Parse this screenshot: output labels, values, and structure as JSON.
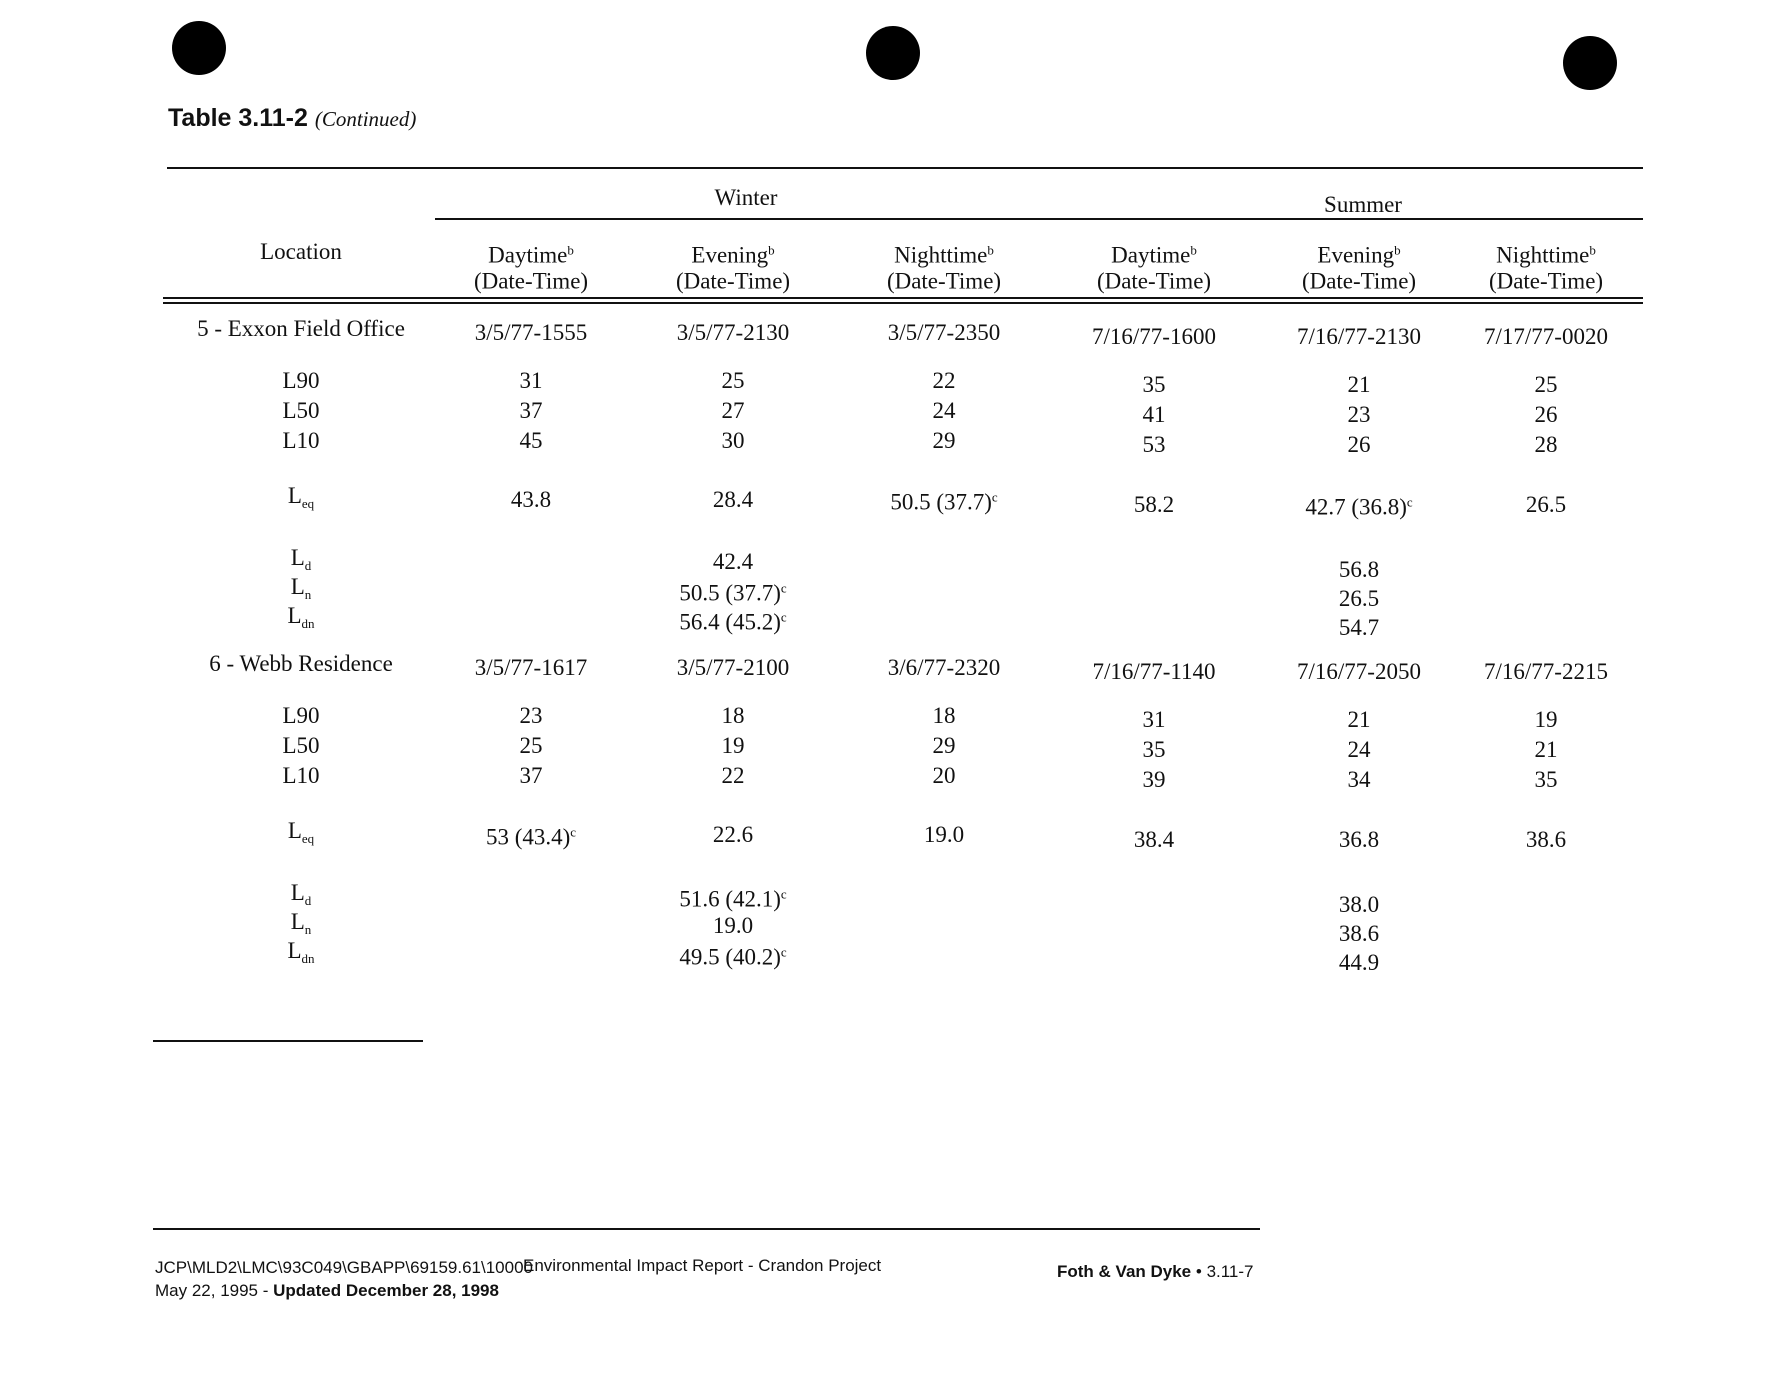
{
  "header": {
    "title": "Table 3.11-2",
    "subtitle": "(Continued)"
  },
  "table": {
    "location_header": "Location",
    "groups": [
      "Winter",
      "Summer"
    ],
    "columns": [
      {
        "name": "Daytime",
        "note": "b",
        "sub": "(Date-Time)"
      },
      {
        "name": "Evening",
        "note": "b",
        "sub": "(Date-Time)"
      },
      {
        "name": "Nighttime",
        "note": "b",
        "sub": "(Date-Time)"
      },
      {
        "name": "Daytime",
        "note": "b",
        "sub": "(Date-Time)"
      },
      {
        "name": "Evening",
        "note": "b",
        "sub": "(Date-Time)"
      },
      {
        "name": "Nighttime",
        "note": "b",
        "sub": "(Date-Time)"
      }
    ],
    "sections": [
      {
        "location": "5 - Exxon Field Office",
        "dates": [
          "3/5/77-1555",
          "3/5/77-2130",
          "3/5/77-2350",
          "7/16/77-1600",
          "7/16/77-2130",
          "7/17/77-0020"
        ],
        "rows": [
          {
            "label": "L90",
            "values": [
              31,
              25,
              22,
              35,
              21,
              25
            ]
          },
          {
            "label": "L50",
            "values": [
              37,
              27,
              24,
              41,
              23,
              26
            ]
          },
          {
            "label": "L10",
            "values": [
              45,
              30,
              29,
              53,
              26,
              28
            ]
          }
        ],
        "leq": {
          "label": {
            "base": "L",
            "sub": "eq"
          },
          "values": [
            43.8,
            28.4,
            {
              "text": "50.5 (37.7)",
              "note": "c"
            },
            58.2,
            {
              "text": "42.7 (36.8)",
              "note": "c"
            },
            26.5
          ]
        },
        "day_night": [
          {
            "label": {
              "base": "L",
              "sub": "d"
            },
            "winter": 42.4,
            "summer": 56.8
          },
          {
            "label": {
              "base": "L",
              "sub": "n"
            },
            "winter": {
              "text": "50.5 (37.7)",
              "note": "c"
            },
            "summer": 26.5
          },
          {
            "label": {
              "base": "L",
              "sub": "dn"
            },
            "winter": {
              "text": "56.4 (45.2)",
              "note": "c"
            },
            "summer": 54.7
          }
        ]
      },
      {
        "location": "6 - Webb Residence",
        "dates": [
          "3/5/77-1617",
          "3/5/77-2100",
          "3/6/77-2320",
          "7/16/77-1140",
          "7/16/77-2050",
          "7/16/77-2215"
        ],
        "rows": [
          {
            "label": "L90",
            "values": [
              23,
              18,
              18,
              31,
              21,
              19
            ]
          },
          {
            "label": "L50",
            "values": [
              25,
              19,
              29,
              35,
              24,
              21
            ]
          },
          {
            "label": "L10",
            "values": [
              37,
              22,
              20,
              39,
              34,
              35
            ]
          }
        ],
        "leq": {
          "label": {
            "base": "L",
            "sub": "eq"
          },
          "values": [
            {
              "text": "53 (43.4)",
              "note": "c"
            },
            22.6,
            "19.0",
            38.4,
            36.8,
            38.6
          ]
        },
        "day_night": [
          {
            "label": {
              "base": "L",
              "sub": "d"
            },
            "winter": {
              "text": "51.6 (42.1)",
              "note": "c"
            },
            "summer": "38.0"
          },
          {
            "label": {
              "base": "L",
              "sub": "n"
            },
            "winter": "19.0",
            "summer": 38.6
          },
          {
            "label": {
              "base": "L",
              "sub": "dn"
            },
            "winter": {
              "text": "49.5 (40.2)",
              "note": "c"
            },
            "summer": 44.9
          }
        ]
      }
    ]
  },
  "footer": {
    "path": "JCP\\MLD2\\LMC\\93C049\\GBAPP\\69159.61\\10000",
    "date": "May 22, 1995 - ",
    "updated": "Updated December 28, 1998",
    "report": "Environmental Impact Report - Crandon Project",
    "company": "Foth & Van Dyke",
    "separator": "•",
    "page": "3.11-7"
  }
}
